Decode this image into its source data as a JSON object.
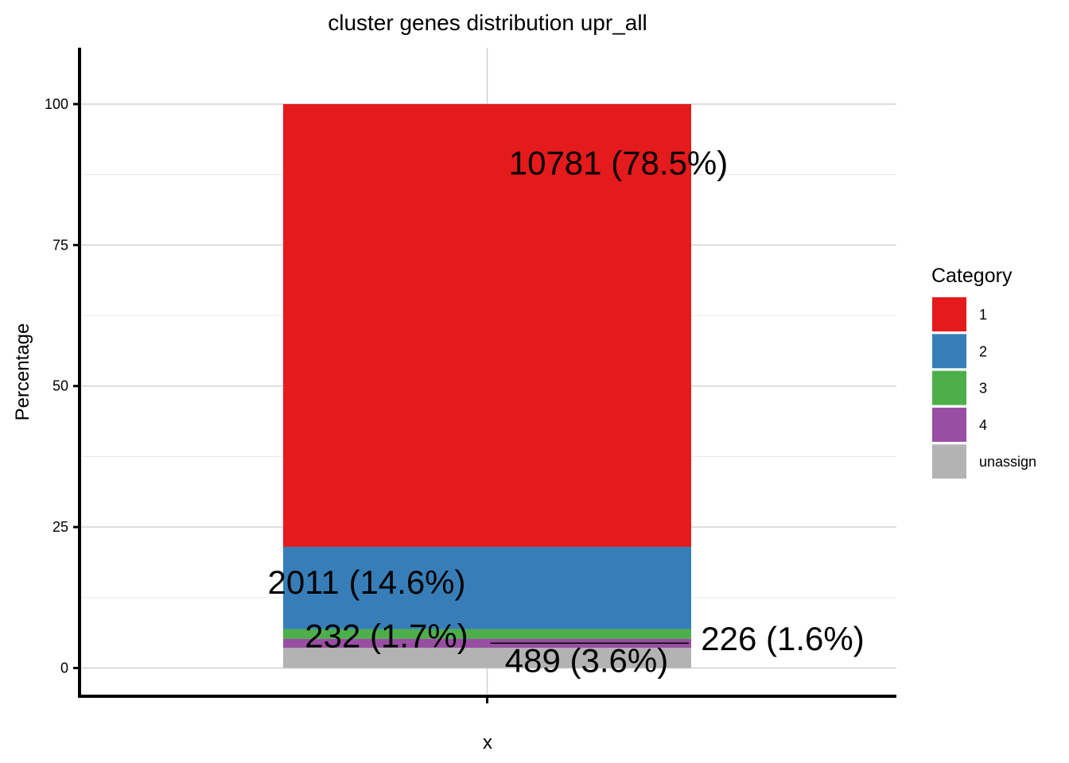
{
  "chart_data": {
    "type": "bar",
    "stacked": true,
    "title": "cluster genes distribution upr_all",
    "xlabel": "x",
    "ylabel": "Percentage",
    "ylim": [
      -5,
      110
    ],
    "yticks": [
      0,
      25,
      50,
      75,
      100
    ],
    "categories": [
      ""
    ],
    "grid": true,
    "legend": {
      "title": "Category",
      "placement": "right"
    },
    "segments": [
      {
        "name": "unassign",
        "count": 489,
        "percent": 3.6,
        "color": "#b3b3b3",
        "label": "489 (3.6%)"
      },
      {
        "name": "4",
        "count": 226,
        "percent": 1.6,
        "color": "#984ea3",
        "label": "226 (1.6%)"
      },
      {
        "name": "3",
        "count": 232,
        "percent": 1.7,
        "color": "#4daf4a",
        "label": "232 (1.7%)"
      },
      {
        "name": "2",
        "count": 2011,
        "percent": 14.6,
        "color": "#377eb8",
        "label": "2011 (14.6%)"
      },
      {
        "name": "1",
        "count": 10781,
        "percent": 78.5,
        "color": "#e41a1c",
        "label": "10781 (78.5%)"
      }
    ],
    "legend_order": [
      "1",
      "2",
      "3",
      "4",
      "unassign"
    ]
  }
}
